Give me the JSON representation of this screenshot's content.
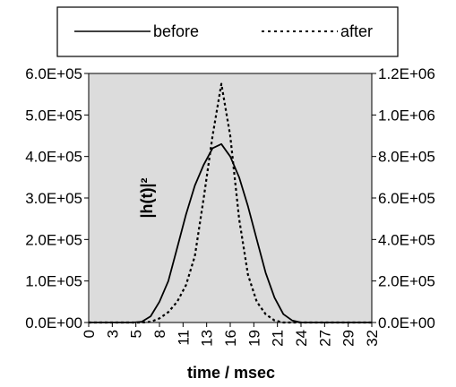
{
  "chart_data": {
    "type": "line",
    "title": "",
    "xlabel": "time / msec",
    "ylabel": "|h(t)|²",
    "x_ticks": [
      "0",
      "3",
      "5",
      "8",
      "11",
      "13",
      "16",
      "19",
      "21",
      "24",
      "27",
      "29",
      "32"
    ],
    "x_range": [
      0,
      32
    ],
    "y_left": {
      "range": [
        0,
        600000
      ],
      "ticks": [
        "0.0E+00",
        "1.0E+05",
        "2.0E+05",
        "3.0E+05",
        "4.0E+05",
        "5.0E+05",
        "6.0E+05"
      ]
    },
    "y_right": {
      "range": [
        0,
        1200000
      ],
      "ticks": [
        "0.0E+00",
        "2.0E+05",
        "4.0E+05",
        "6.0E+05",
        "8.0E+05",
        "1.0E+06",
        "1.2E+06"
      ]
    },
    "grid": false,
    "background": "#dcdcdc",
    "legend_position": "top",
    "series": [
      {
        "name": "before",
        "axis": "left",
        "style": "solid",
        "x": [
          0,
          1,
          2,
          3,
          4,
          5,
          6,
          7,
          8,
          9,
          10,
          11,
          12,
          13,
          14,
          15,
          16,
          17,
          18,
          19,
          20,
          21,
          22,
          23,
          24,
          25,
          26,
          27,
          28,
          29,
          30,
          31,
          32
        ],
        "values": [
          0,
          0,
          0,
          0,
          0,
          0,
          2000,
          15000,
          50000,
          100000,
          180000,
          260000,
          330000,
          380000,
          420000,
          430000,
          400000,
          350000,
          280000,
          200000,
          120000,
          60000,
          20000,
          5000,
          0,
          0,
          0,
          0,
          0,
          0,
          0,
          0,
          0
        ]
      },
      {
        "name": "after",
        "axis": "right",
        "style": "dotted",
        "x": [
          0,
          1,
          2,
          3,
          4,
          5,
          6,
          7,
          8,
          9,
          10,
          11,
          12,
          13,
          14,
          15,
          16,
          17,
          18,
          19,
          20,
          21,
          22,
          23,
          24,
          25,
          26,
          27,
          28,
          29,
          30,
          31,
          32
        ],
        "values": [
          0,
          0,
          0,
          0,
          0,
          0,
          0,
          3000,
          20000,
          50000,
          100000,
          180000,
          320000,
          600000,
          900000,
          1150000,
          900000,
          500000,
          230000,
          100000,
          40000,
          10000,
          0,
          0,
          0,
          0,
          0,
          0,
          0,
          0,
          0,
          0,
          0
        ]
      }
    ]
  }
}
